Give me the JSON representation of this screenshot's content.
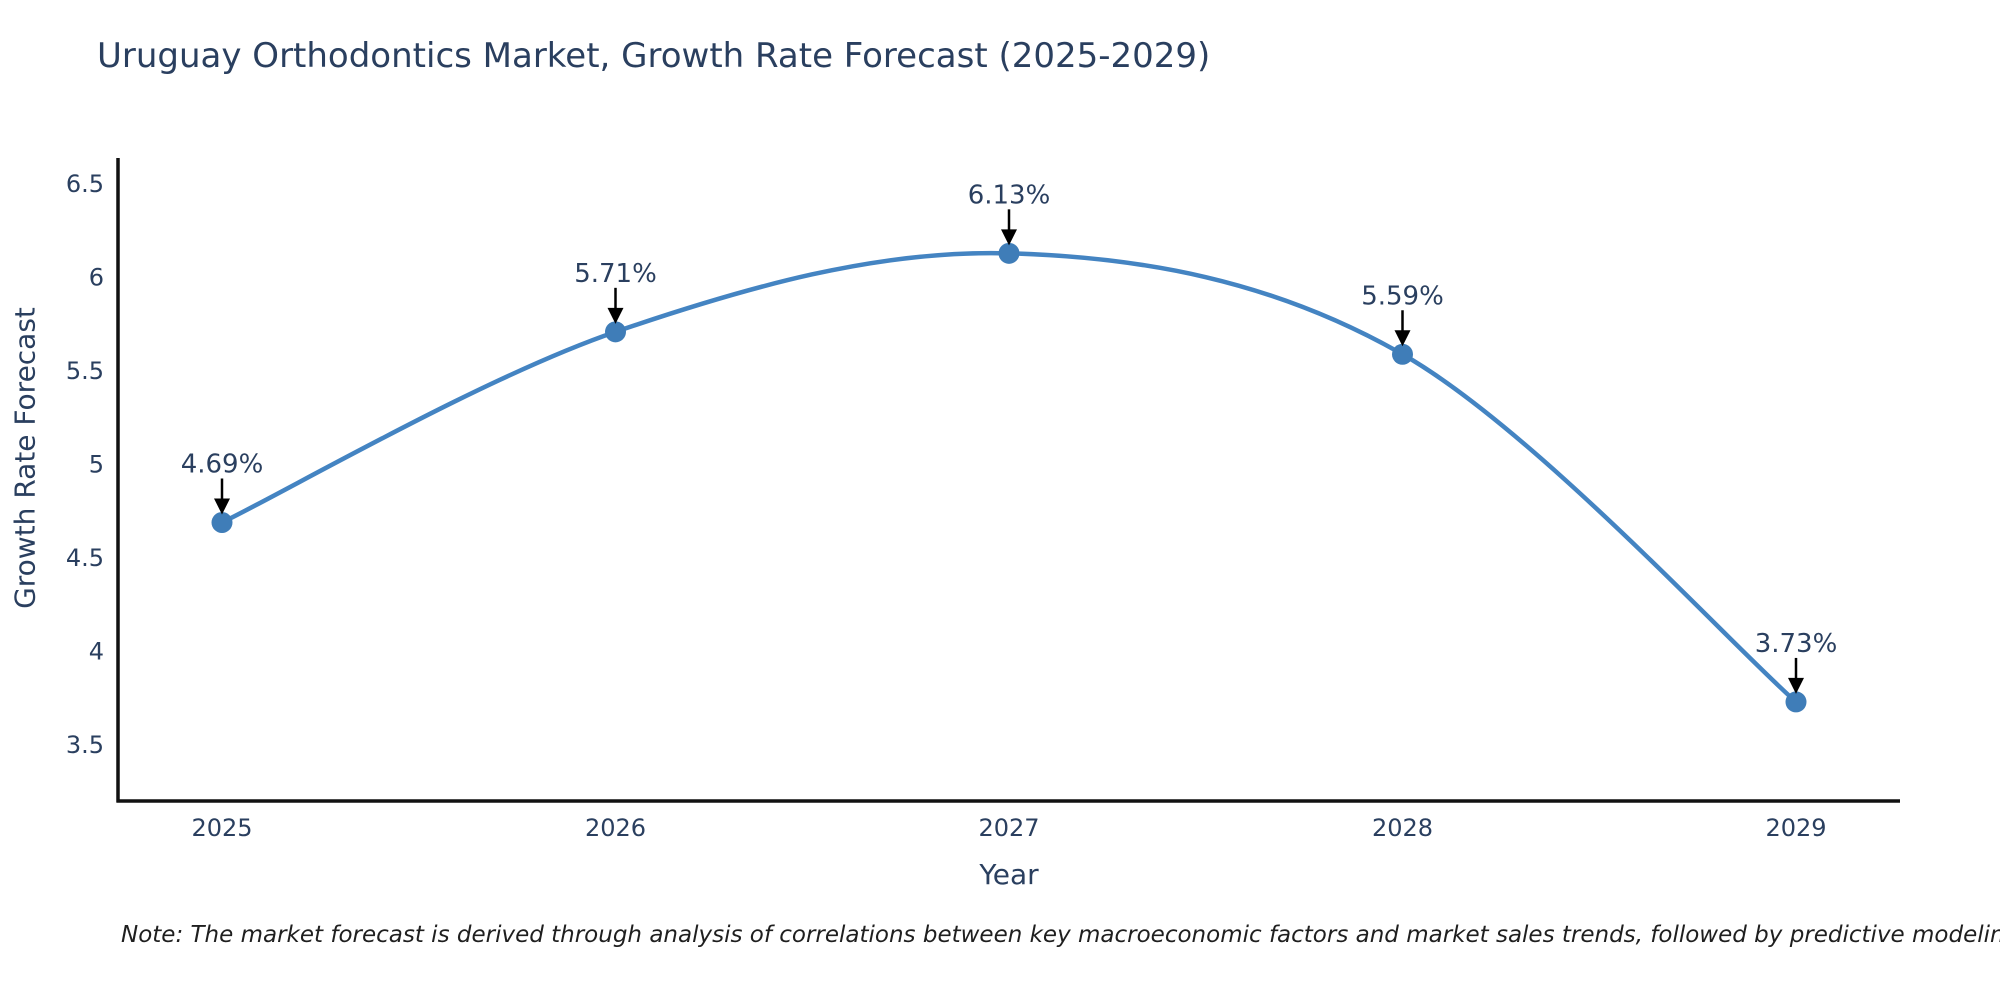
{
  "page": {
    "note": "Note: The market forecast is derived through analysis of correlations between key macroeconomic factors and market sales trends, followed by predictive modeling to project future sales"
  },
  "chart_data": {
    "type": "line",
    "title": "Uruguay Orthodontics Market, Growth Rate Forecast (2025-2029)",
    "xlabel": "Year",
    "ylabel": "Growth Rate Forecast",
    "categories": [
      "2025",
      "2026",
      "2027",
      "2028",
      "2029"
    ],
    "values": [
      4.69,
      5.71,
      6.13,
      5.59,
      3.73
    ],
    "point_labels": [
      "4.69%",
      "5.71%",
      "6.13%",
      "5.59%",
      "3.73%"
    ],
    "yticks": [
      6.5,
      6,
      5.5,
      5,
      4.5,
      4,
      3.5
    ],
    "ytick_labels": [
      "6.5",
      "6",
      "5.5",
      "5",
      "4.5",
      "4",
      "3.5"
    ],
    "ylim": [
      3.2,
      6.64
    ],
    "grid": false,
    "legend": "none",
    "line_shape": "spline",
    "annotation_style": "label-above-with-down-arrow",
    "colors": {
      "line": "#4484c2",
      "marker": "#3f7db8",
      "text": "#2a3f5f",
      "axis": "#111111",
      "arrow": "#000000",
      "background": "#ffffff"
    }
  }
}
